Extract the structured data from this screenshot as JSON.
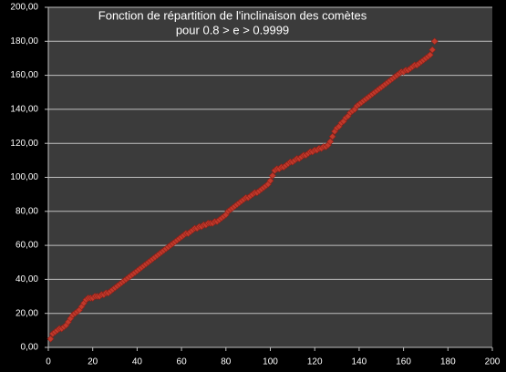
{
  "chart_data": {
    "type": "scatter",
    "title": "Fonction de répartition de l'inclinaison des comètes",
    "subtitle": "pour   0.8 > e > 0.9999",
    "color": "#c0392b",
    "grid": true,
    "xlim": [
      0,
      200
    ],
    "xticks": [
      0,
      20,
      40,
      60,
      80,
      100,
      120,
      140,
      160,
      180,
      200
    ],
    "ylim": [
      0,
      200
    ],
    "yticks": [
      {
        "value": 0,
        "label": "0,00"
      },
      {
        "value": 20,
        "label": "20,00"
      },
      {
        "value": 40,
        "label": "40,00"
      },
      {
        "value": 60,
        "label": "60,00"
      },
      {
        "value": 80,
        "label": "80,00"
      },
      {
        "value": 100,
        "label": "100,00"
      },
      {
        "value": 120,
        "label": "120,00"
      },
      {
        "value": 140,
        "label": "140,00"
      },
      {
        "value": 160,
        "label": "160,00"
      },
      {
        "value": 180,
        "label": "180,00"
      },
      {
        "value": 200,
        "label": "200,00"
      }
    ],
    "x": [
      1,
      2,
      3,
      4,
      5,
      6,
      7,
      8,
      9,
      10,
      11,
      12,
      13,
      14,
      15,
      16,
      17,
      18,
      19,
      20,
      21,
      22,
      23,
      24,
      25,
      26,
      27,
      28,
      29,
      30,
      31,
      32,
      33,
      34,
      35,
      36,
      37,
      38,
      39,
      40,
      41,
      42,
      43,
      44,
      45,
      46,
      47,
      48,
      49,
      50,
      51,
      52,
      53,
      54,
      55,
      56,
      57,
      58,
      59,
      60,
      61,
      62,
      63,
      64,
      65,
      66,
      67,
      68,
      69,
      70,
      71,
      72,
      73,
      74,
      75,
      76,
      77,
      78,
      79,
      80,
      81,
      82,
      83,
      84,
      85,
      86,
      87,
      88,
      89,
      90,
      91,
      92,
      93,
      94,
      95,
      96,
      97,
      98,
      99,
      100,
      101,
      102,
      103,
      104,
      105,
      106,
      107,
      108,
      109,
      110,
      111,
      112,
      113,
      114,
      115,
      116,
      117,
      118,
      119,
      120,
      121,
      122,
      123,
      124,
      125,
      126,
      127,
      128,
      129,
      130,
      131,
      132,
      133,
      134,
      135,
      136,
      137,
      138,
      139,
      140,
      141,
      142,
      143,
      144,
      145,
      146,
      147,
      148,
      149,
      150,
      151,
      152,
      153,
      154,
      155,
      156,
      157,
      158,
      159,
      160,
      161,
      162,
      163,
      164,
      165,
      166,
      167,
      168,
      169,
      170,
      171,
      172,
      173,
      174
    ],
    "values": [
      5,
      8,
      9,
      10,
      11,
      11,
      12,
      13,
      15,
      17,
      19,
      20,
      21,
      22,
      24,
      26,
      28,
      29,
      29,
      29,
      30,
      30,
      30,
      31,
      31,
      32,
      32,
      33,
      34,
      35,
      36,
      37,
      38,
      39,
      40,
      41,
      42,
      43,
      44,
      45,
      46,
      47,
      48,
      49,
      50,
      51,
      52,
      53,
      54,
      55,
      56,
      57,
      58,
      59,
      60,
      61,
      62,
      63,
      64,
      65,
      66,
      67,
      67,
      68,
      69,
      70,
      70,
      71,
      71,
      72,
      72,
      73,
      73,
      73,
      74,
      74,
      75,
      76,
      77,
      78,
      80,
      81,
      82,
      83,
      84,
      85,
      86,
      87,
      88,
      88,
      89,
      90,
      91,
      91,
      92,
      93,
      94,
      95,
      96,
      98,
      101,
      104,
      105,
      105,
      106,
      106,
      107,
      108,
      109,
      109,
      110,
      111,
      111,
      112,
      113,
      113,
      114,
      115,
      115,
      116,
      116,
      117,
      117,
      118,
      118,
      119,
      121,
      124,
      127,
      129,
      130,
      132,
      133,
      135,
      136,
      138,
      139,
      140,
      142,
      143,
      144,
      145,
      146,
      147,
      148,
      149,
      150,
      151,
      152,
      153,
      154,
      155,
      156,
      157,
      158,
      159,
      160,
      161,
      162,
      162,
      163,
      163,
      164,
      165,
      166,
      166,
      167,
      168,
      169,
      170,
      171,
      172,
      175,
      180
    ]
  }
}
